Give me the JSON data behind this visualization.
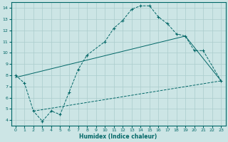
{
  "xlabel": "Humidex (Indice chaleur)",
  "ylabel": "",
  "xlim": [
    -0.5,
    23.5
  ],
  "ylim": [
    3.5,
    14.5
  ],
  "yticks": [
    4,
    5,
    6,
    7,
    8,
    9,
    10,
    11,
    12,
    13,
    14
  ],
  "xticks": [
    0,
    1,
    2,
    3,
    4,
    5,
    6,
    7,
    8,
    9,
    10,
    11,
    12,
    13,
    14,
    15,
    16,
    17,
    18,
    19,
    20,
    21,
    22,
    23
  ],
  "bg_color": "#cce5e5",
  "grid_color": "#aacccc",
  "line_color": "#006666",
  "line1_x": [
    0,
    1,
    2,
    3,
    4,
    5,
    6,
    7,
    8,
    10,
    11,
    12,
    13,
    14,
    15,
    16,
    17,
    18,
    19,
    20,
    21,
    23
  ],
  "line1_y": [
    8.0,
    7.3,
    4.8,
    3.9,
    4.8,
    4.5,
    6.5,
    8.5,
    9.8,
    11.0,
    12.2,
    12.9,
    13.9,
    14.2,
    14.2,
    13.2,
    12.6,
    11.7,
    11.5,
    10.2,
    10.2,
    7.5
  ],
  "line2_x": [
    0,
    19,
    23
  ],
  "line2_y": [
    7.8,
    11.5,
    7.5
  ],
  "line3_x": [
    2,
    23
  ],
  "line3_y": [
    4.8,
    7.5
  ]
}
